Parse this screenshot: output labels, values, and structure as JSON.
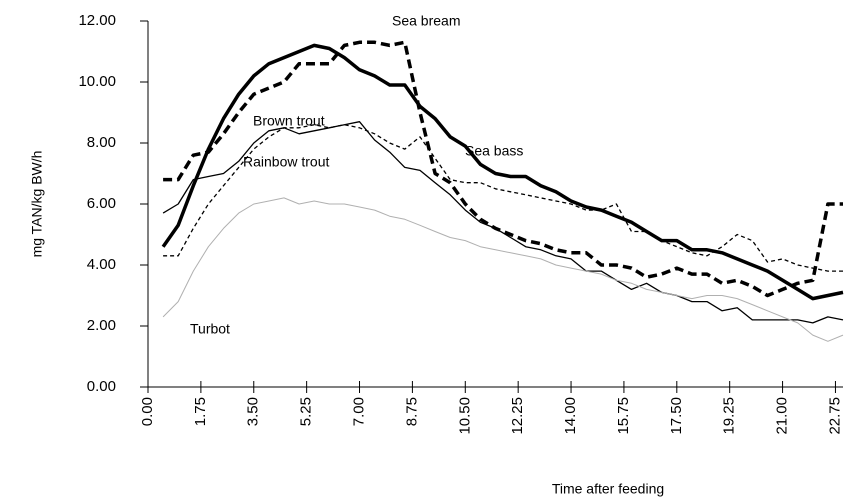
{
  "chart_data": {
    "type": "line",
    "xlabel": "Time after feeding",
    "ylabel": "mg TAN/kg BW/h",
    "x": [
      0.5,
      1,
      1.5,
      2,
      2.5,
      3,
      3.5,
      4,
      4.5,
      5,
      5.5,
      6,
      6.5,
      7,
      7.5,
      8,
      8.5,
      9,
      9.5,
      10,
      10.5,
      11,
      11.5,
      12,
      12.5,
      13,
      13.5,
      14,
      14.5,
      15,
      15.5,
      16,
      16.5,
      17,
      17.5,
      18,
      18.5,
      19,
      19.5,
      20,
      20.5,
      21,
      21.5,
      22,
      22.5,
      23
    ],
    "xlim": [
      0,
      23
    ],
    "ylim": [
      0,
      12
    ],
    "xticks": [
      {
        "value": 0,
        "label": "0.00"
      },
      {
        "value": 1.75,
        "label": "1.75"
      },
      {
        "value": 3.5,
        "label": "3.50"
      },
      {
        "value": 5.25,
        "label": "5.25"
      },
      {
        "value": 7,
        "label": "7.00"
      },
      {
        "value": 8.75,
        "label": "8.75"
      },
      {
        "value": 10.5,
        "label": "10.50"
      },
      {
        "value": 12.25,
        "label": "12.25"
      },
      {
        "value": 14,
        "label": "14.00"
      },
      {
        "value": 15.75,
        "label": "15.75"
      },
      {
        "value": 17.5,
        "label": "17.50"
      },
      {
        "value": 19.25,
        "label": "19.25"
      },
      {
        "value": 21,
        "label": "21.00"
      },
      {
        "value": 22.75,
        "label": "22.75"
      }
    ],
    "yticks": [
      {
        "value": 0,
        "label": "0.00"
      },
      {
        "value": 2,
        "label": "2.00"
      },
      {
        "value": 4,
        "label": "4.00"
      },
      {
        "value": 6,
        "label": "6.00"
      },
      {
        "value": 8,
        "label": "8.00"
      },
      {
        "value": 10,
        "label": "10.00"
      },
      {
        "value": 12,
        "label": "12.00"
      }
    ],
    "grid": false,
    "series": [
      {
        "name": "Sea bream",
        "color": "#000000",
        "line_width": 3.5,
        "dashed": true,
        "values": [
          6.8,
          6.8,
          7.6,
          7.7,
          8.3,
          9.0,
          9.6,
          9.8,
          10.0,
          10.6,
          10.6,
          10.6,
          11.2,
          11.3,
          11.3,
          11.2,
          11.3,
          9.0,
          7.0,
          6.7,
          6.0,
          5.5,
          5.2,
          5.0,
          4.8,
          4.7,
          4.5,
          4.4,
          4.4,
          4.0,
          4.0,
          3.9,
          3.6,
          3.7,
          3.9,
          3.7,
          3.7,
          3.4,
          3.5,
          3.3,
          3.0,
          3.2,
          3.4,
          3.5,
          6.0,
          6.0
        ]
      },
      {
        "name": "Sea bass",
        "color": "#000000",
        "line_width": 3.5,
        "dashed": false,
        "values": [
          4.6,
          5.3,
          6.6,
          7.8,
          8.8,
          9.6,
          10.2,
          10.6,
          10.8,
          11.0,
          11.2,
          11.1,
          10.8,
          10.4,
          10.2,
          9.9,
          9.9,
          9.2,
          8.8,
          8.2,
          7.9,
          7.3,
          7.0,
          6.9,
          6.9,
          6.6,
          6.4,
          6.1,
          5.9,
          5.8,
          5.6,
          5.4,
          5.1,
          4.8,
          4.8,
          4.5,
          4.5,
          4.4,
          4.2,
          4.0,
          3.8,
          3.5,
          3.2,
          2.9,
          3.0,
          3.1
        ]
      },
      {
        "name": "Brown trout",
        "color": "#000000",
        "line_width": 1.3,
        "dashed": true,
        "values": [
          4.3,
          4.3,
          5.2,
          6.0,
          6.6,
          7.2,
          7.8,
          8.2,
          8.5,
          8.5,
          8.6,
          8.5,
          8.6,
          8.5,
          8.3,
          8.0,
          7.8,
          8.2,
          7.5,
          6.8,
          6.7,
          6.7,
          6.5,
          6.4,
          6.3,
          6.2,
          6.1,
          6.0,
          5.8,
          5.8,
          6.0,
          5.1,
          5.1,
          4.8,
          4.6,
          4.4,
          4.3,
          4.6,
          5.0,
          4.8,
          4.1,
          4.2,
          4.0,
          3.9,
          3.8,
          3.8
        ]
      },
      {
        "name": "Rainbow trout",
        "color": "#000000",
        "line_width": 1.3,
        "dashed": false,
        "values": [
          5.7,
          6.0,
          6.8,
          6.9,
          7.0,
          7.4,
          8.0,
          8.4,
          8.5,
          8.3,
          8.4,
          8.5,
          8.6,
          8.7,
          8.1,
          7.7,
          7.2,
          7.1,
          6.7,
          6.3,
          5.8,
          5.4,
          5.2,
          4.9,
          4.6,
          4.5,
          4.3,
          4.2,
          3.8,
          3.8,
          3.5,
          3.2,
          3.4,
          3.1,
          3.0,
          2.8,
          2.8,
          2.5,
          2.6,
          2.2,
          2.2,
          2.2,
          2.2,
          2.1,
          2.3,
          2.2
        ]
      },
      {
        "name": "Turbot",
        "color": "#b0b0b0",
        "line_width": 1,
        "dashed": false,
        "values": [
          2.3,
          2.8,
          3.8,
          4.6,
          5.2,
          5.7,
          6.0,
          6.1,
          6.2,
          6.0,
          6.1,
          6.0,
          6.0,
          5.9,
          5.8,
          5.6,
          5.5,
          5.3,
          5.1,
          4.9,
          4.8,
          4.6,
          4.5,
          4.4,
          4.3,
          4.2,
          4.0,
          3.9,
          3.8,
          3.7,
          3.5,
          3.4,
          3.2,
          3.1,
          3.0,
          2.9,
          3.0,
          3.0,
          2.9,
          2.7,
          2.5,
          2.3,
          2.1,
          1.7,
          1.5,
          1.7
        ]
      }
    ]
  }
}
